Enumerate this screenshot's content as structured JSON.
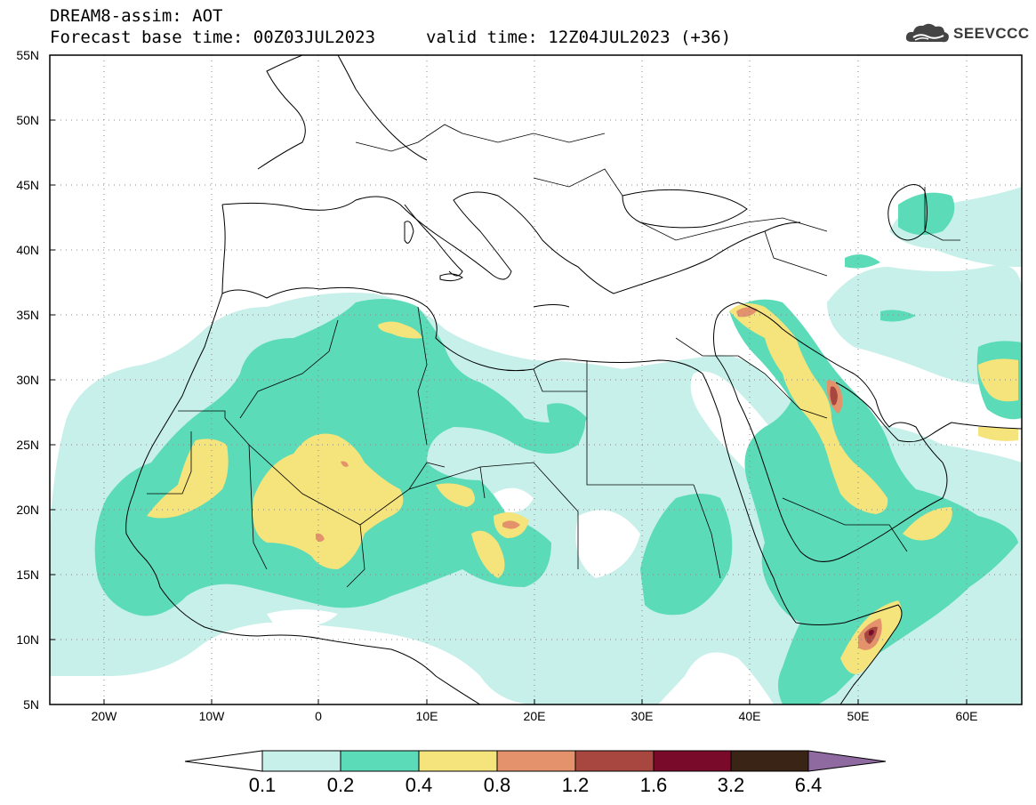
{
  "header": {
    "title": "DREAM8-assim: AOT",
    "base_time": "Forecast base time: 00Z03JUL2023",
    "valid_time": "valid time: 12Z04JUL2023 (+36)"
  },
  "logo": {
    "text": "SEEVCCC",
    "icon": "cloud-logo-icon"
  },
  "map": {
    "lat_labels": [
      "55N",
      "50N",
      "45N",
      "40N",
      "35N",
      "30N",
      "25N",
      "20N",
      "15N",
      "10N",
      "5N"
    ],
    "lon_labels": [
      "20W",
      "10W",
      "0",
      "10E",
      "20E",
      "30E",
      "40E",
      "50E",
      "60E"
    ],
    "extent": {
      "lon_min": -25,
      "lon_max": 65,
      "lat_min": 5,
      "lat_max": 55
    }
  },
  "colorbar": {
    "labels": [
      "0.1",
      "0.2",
      "0.4",
      "0.8",
      "1.2",
      "1.6",
      "3.2",
      "6.4"
    ],
    "colors": [
      "#ffffff",
      "#c6f0e9",
      "#5bdbb7",
      "#f5e37b",
      "#e4926b",
      "#a8473f",
      "#7a0a2a",
      "#3a2416",
      "#8e6aa0"
    ]
  }
}
